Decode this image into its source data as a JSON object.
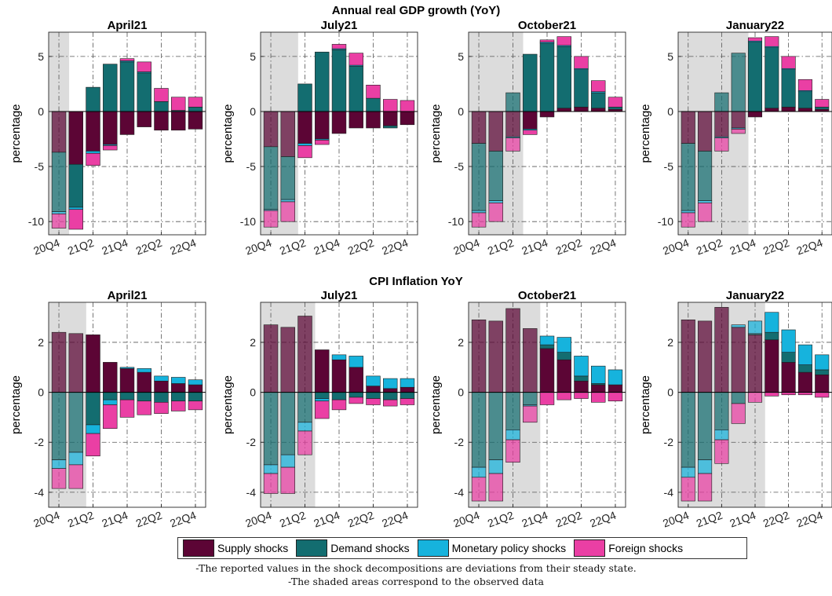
{
  "rows": [
    {
      "title": "Annual real GDP growth (YoY)",
      "ylabel": "percentage",
      "yticks": [
        -10,
        -5,
        0,
        5
      ],
      "ylim": [
        -11.2,
        7.2
      ]
    },
    {
      "title": "CPI Inflation YoY",
      "ylabel": "percentage",
      "yticks": [
        -4,
        -2,
        0,
        2
      ],
      "ylim": [
        -4.6,
        3.6
      ]
    }
  ],
  "xtick_labels": [
    "20Q4",
    "21Q2",
    "21Q4",
    "22Q2",
    "22Q4"
  ],
  "legend": [
    {
      "key": "supply",
      "label": "Supply shocks",
      "color": "#5c0535"
    },
    {
      "key": "demand",
      "label": "Demand shocks",
      "color": "#136d70"
    },
    {
      "key": "monetary",
      "label": "Monetary policy shocks",
      "color": "#16b3dd"
    },
    {
      "key": "foreign",
      "label": "Foreign shocks",
      "color": "#ea3fa4"
    }
  ],
  "notes": [
    "-The reported values in the shock decompositions are deviations from their steady state.",
    "-The shaded areas correspond to the observed data"
  ],
  "chart_data": [
    {
      "type": "bar",
      "stacked": true,
      "row": 0,
      "title": "April21",
      "categories": [
        "20Q4",
        "21Q1",
        "21Q2",
        "21Q3",
        "21Q4",
        "22Q1",
        "22Q2",
        "22Q3",
        "22Q4"
      ],
      "observed_quarters": 1,
      "grid": true,
      "series": [
        {
          "name": "Supply shocks",
          "values": [
            -3.7,
            -4.8,
            -3.6,
            -3.0,
            -2.1,
            -1.4,
            -1.7,
            -1.7,
            -1.6
          ]
        },
        {
          "name": "Demand shocks",
          "values": [
            -5.4,
            -3.9,
            2.2,
            4.3,
            4.5,
            3.5,
            0.9,
            0.1,
            0.4
          ]
        },
        {
          "name": "Monetary policy shocks",
          "values": [
            -0.2,
            -0.2,
            -0.2,
            -0.1,
            0.1,
            0.1,
            0.0,
            0.0,
            0.0
          ]
        },
        {
          "name": "Foreign shocks",
          "values": [
            -1.3,
            -1.8,
            -1.1,
            -0.4,
            0.2,
            0.9,
            1.2,
            1.2,
            0.9
          ]
        }
      ]
    },
    {
      "type": "bar",
      "stacked": true,
      "row": 0,
      "title": "July21",
      "categories": [
        "20Q4",
        "21Q1",
        "21Q2",
        "21Q3",
        "21Q4",
        "22Q1",
        "22Q2",
        "22Q3",
        "22Q4"
      ],
      "observed_quarters": 2,
      "grid": true,
      "series": [
        {
          "name": "Supply shocks",
          "values": [
            -3.2,
            -4.1,
            -2.9,
            -2.5,
            -2.0,
            -1.5,
            -1.5,
            -1.3,
            -1.2
          ]
        },
        {
          "name": "Demand shocks",
          "values": [
            -5.7,
            -3.9,
            2.5,
            5.4,
            5.6,
            4.1,
            1.2,
            -0.2,
            0.0
          ]
        },
        {
          "name": "Monetary policy shocks",
          "values": [
            -0.1,
            -0.2,
            -0.2,
            -0.1,
            0.1,
            0.1,
            0.0,
            0.0,
            0.0
          ]
        },
        {
          "name": "Foreign shocks",
          "values": [
            -1.5,
            -1.8,
            -1.1,
            -0.4,
            0.4,
            1.1,
            1.2,
            1.1,
            1.0
          ]
        }
      ]
    },
    {
      "type": "bar",
      "stacked": true,
      "row": 0,
      "title": "October21",
      "categories": [
        "20Q4",
        "21Q1",
        "21Q2",
        "21Q3",
        "21Q4",
        "22Q1",
        "22Q2",
        "22Q3",
        "22Q4"
      ],
      "observed_quarters": 3,
      "grid": true,
      "series": [
        {
          "name": "Supply shocks",
          "values": [
            -2.9,
            -3.6,
            -2.3,
            -1.6,
            -0.5,
            0.3,
            0.4,
            0.3,
            0.2
          ]
        },
        {
          "name": "Demand shocks",
          "values": [
            -6.1,
            -4.5,
            1.7,
            5.2,
            6.2,
            5.6,
            3.4,
            1.4,
            0.2
          ]
        },
        {
          "name": "Monetary policy shocks",
          "values": [
            -0.2,
            -0.2,
            -0.1,
            -0.1,
            0.1,
            0.1,
            0.1,
            0.1,
            0.0
          ]
        },
        {
          "name": "Foreign shocks",
          "values": [
            -1.3,
            -1.7,
            -1.2,
            -0.4,
            0.2,
            0.8,
            1.1,
            1.0,
            0.9
          ]
        }
      ]
    },
    {
      "type": "bar",
      "stacked": true,
      "row": 0,
      "title": "January22",
      "categories": [
        "20Q4",
        "21Q1",
        "21Q2",
        "21Q3",
        "21Q4",
        "22Q1",
        "22Q2",
        "22Q3",
        "22Q4"
      ],
      "observed_quarters": 4,
      "grid": true,
      "series": [
        {
          "name": "Supply shocks",
          "values": [
            -2.9,
            -3.6,
            -2.3,
            -1.5,
            -0.5,
            0.3,
            0.4,
            0.3,
            0.2
          ]
        },
        {
          "name": "Demand shocks",
          "values": [
            -6.1,
            -4.5,
            1.7,
            5.3,
            6.3,
            5.5,
            3.4,
            1.5,
            0.2
          ]
        },
        {
          "name": "Monetary policy shocks",
          "values": [
            -0.2,
            -0.2,
            -0.1,
            -0.1,
            0.1,
            0.1,
            0.1,
            0.1,
            0.0
          ]
        },
        {
          "name": "Foreign shocks",
          "values": [
            -1.3,
            -1.7,
            -1.2,
            -0.4,
            0.3,
            0.9,
            1.1,
            1.0,
            0.7
          ]
        }
      ]
    },
    {
      "type": "bar",
      "stacked": true,
      "row": 1,
      "title": "April21",
      "categories": [
        "20Q4",
        "21Q1",
        "21Q2",
        "21Q3",
        "21Q4",
        "22Q1",
        "22Q2",
        "22Q3",
        "22Q4"
      ],
      "observed_quarters": 2,
      "grid": true,
      "series": [
        {
          "name": "Supply shocks",
          "values": [
            2.4,
            2.35,
            2.3,
            1.2,
            0.95,
            0.8,
            0.45,
            0.35,
            0.3
          ]
        },
        {
          "name": "Demand shocks",
          "values": [
            -2.7,
            -2.4,
            -1.3,
            -0.3,
            -0.3,
            -0.35,
            -0.4,
            -0.35,
            -0.35
          ]
        },
        {
          "name": "Monetary policy shocks",
          "values": [
            -0.35,
            -0.5,
            -0.35,
            -0.2,
            0.05,
            0.15,
            0.2,
            0.25,
            0.2
          ]
        },
        {
          "name": "Foreign shocks",
          "values": [
            -0.8,
            -0.95,
            -0.9,
            -0.95,
            -0.7,
            -0.55,
            -0.45,
            -0.4,
            -0.35
          ]
        }
      ]
    },
    {
      "type": "bar",
      "stacked": true,
      "row": 1,
      "title": "July21",
      "categories": [
        "20Q4",
        "21Q1",
        "21Q2",
        "21Q3",
        "21Q4",
        "22Q1",
        "22Q2",
        "22Q3",
        "22Q4"
      ],
      "observed_quarters": 3,
      "grid": true,
      "series": [
        {
          "name": "Supply shocks",
          "values": [
            2.7,
            2.6,
            3.05,
            1.7,
            1.3,
            1.0,
            0.25,
            0.15,
            0.2
          ]
        },
        {
          "name": "Demand shocks",
          "values": [
            -2.9,
            -2.5,
            -1.2,
            -0.25,
            -0.3,
            -0.2,
            -0.25,
            -0.3,
            -0.25
          ]
        },
        {
          "name": "Monetary policy shocks",
          "values": [
            -0.35,
            -0.5,
            -0.35,
            -0.1,
            0.2,
            0.45,
            0.4,
            0.4,
            0.35
          ]
        },
        {
          "name": "Foreign shocks",
          "values": [
            -0.8,
            -1.05,
            -0.95,
            -0.7,
            -0.4,
            -0.25,
            -0.25,
            -0.25,
            -0.25
          ]
        }
      ]
    },
    {
      "type": "bar",
      "stacked": true,
      "row": 1,
      "title": "October21",
      "categories": [
        "20Q4",
        "21Q1",
        "21Q2",
        "21Q3",
        "21Q4",
        "22Q1",
        "22Q2",
        "22Q3",
        "22Q4"
      ],
      "observed_quarters": 4,
      "grid": true,
      "series": [
        {
          "name": "Supply shocks",
          "values": [
            2.9,
            2.85,
            3.35,
            2.55,
            1.75,
            1.3,
            0.45,
            0.3,
            0.3
          ]
        },
        {
          "name": "Demand shocks",
          "values": [
            -3.0,
            -2.7,
            -1.5,
            -0.5,
            0.15,
            0.3,
            0.2,
            0.05,
            0.0
          ]
        },
        {
          "name": "Monetary policy shocks",
          "values": [
            -0.4,
            -0.55,
            -0.4,
            -0.05,
            0.35,
            0.6,
            0.8,
            0.7,
            0.6
          ]
        },
        {
          "name": "Foreign shocks",
          "values": [
            -0.95,
            -1.1,
            -0.9,
            -0.65,
            -0.5,
            -0.3,
            -0.25,
            -0.4,
            -0.35
          ]
        }
      ]
    },
    {
      "type": "bar",
      "stacked": true,
      "row": 1,
      "title": "January22",
      "categories": [
        "20Q4",
        "21Q1",
        "21Q2",
        "21Q3",
        "21Q4",
        "22Q1",
        "22Q2",
        "22Q3",
        "22Q4"
      ],
      "observed_quarters": 5,
      "grid": true,
      "series": [
        {
          "name": "Supply shocks",
          "values": [
            2.9,
            2.85,
            3.4,
            2.6,
            2.3,
            2.1,
            1.2,
            0.8,
            0.7
          ]
        },
        {
          "name": "Demand shocks",
          "values": [
            -3.0,
            -2.7,
            -1.5,
            -0.45,
            0.05,
            0.3,
            0.4,
            0.3,
            0.2
          ]
        },
        {
          "name": "Monetary policy shocks",
          "values": [
            -0.4,
            -0.55,
            -0.4,
            0.1,
            0.5,
            0.8,
            0.9,
            0.8,
            0.6
          ]
        },
        {
          "name": "Foreign shocks",
          "values": [
            -0.95,
            -1.1,
            -0.95,
            -0.8,
            -0.4,
            -0.15,
            -0.1,
            -0.1,
            -0.2
          ]
        }
      ]
    }
  ]
}
